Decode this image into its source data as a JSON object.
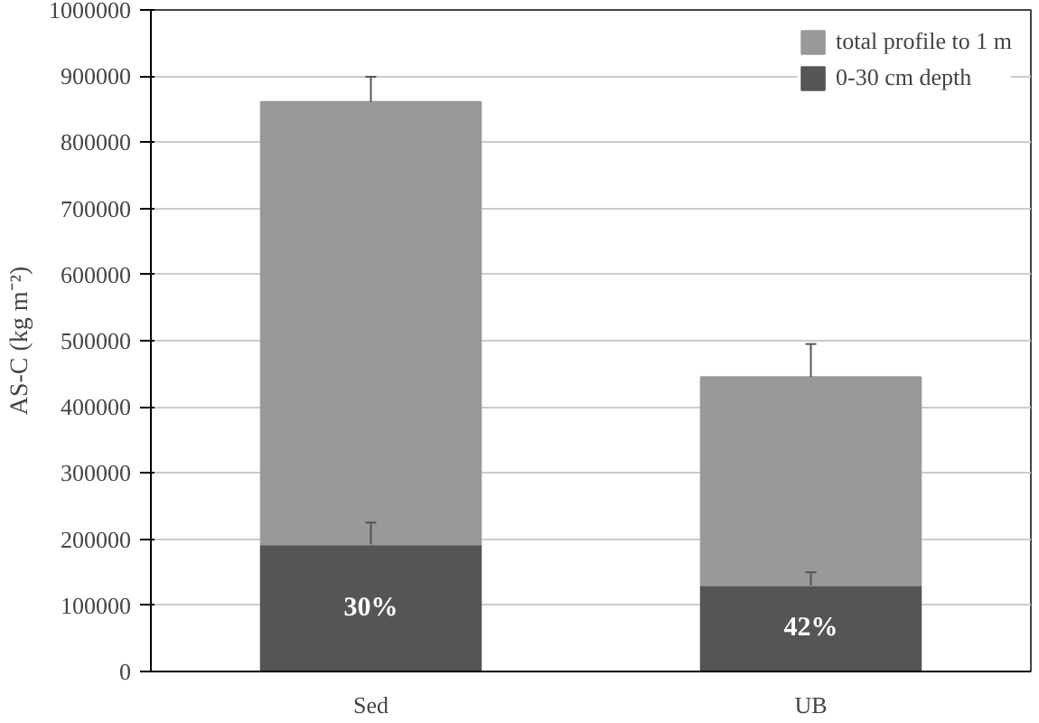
{
  "chart_data": {
    "type": "bar",
    "stacked": true,
    "ylabel": "AS-C (kg m⁻²)",
    "categories": [
      "Sed",
      "UB"
    ],
    "series": [
      {
        "name": "0-30 cm depth",
        "color": "#555555",
        "values": [
          192000,
          130000
        ],
        "errors": [
          [
            192000,
            225000
          ],
          [
            130000,
            150000
          ]
        ]
      },
      {
        "name": "total profile to 1 m",
        "color": "#999999",
        "values": [
          669000,
          315000
        ],
        "errors": [
          [
            861000,
            899000
          ],
          [
            445000,
            495000
          ]
        ]
      }
    ],
    "annotations": [
      "30%",
      "42%"
    ],
    "ylim": [
      0,
      1000000
    ],
    "yticks": [
      0,
      100000,
      200000,
      300000,
      400000,
      500000,
      600000,
      700000,
      800000,
      900000,
      1000000
    ],
    "grid": "y",
    "legend": "top right"
  }
}
